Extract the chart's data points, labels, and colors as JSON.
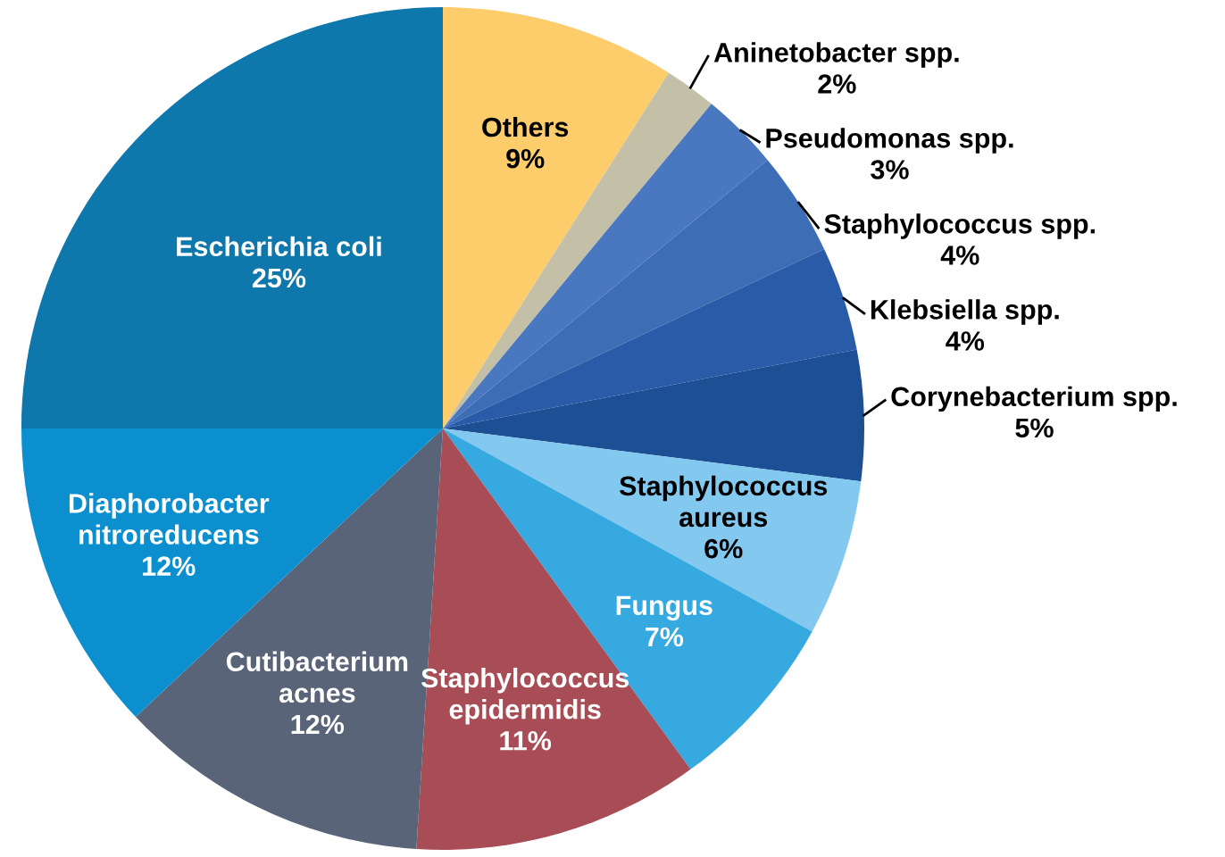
{
  "chart_data": {
    "type": "pie",
    "categories": [
      "Others",
      "Aninetobacter spp.",
      "Pseudomonas spp.",
      "Staphylococcus spp.",
      "Klebsiella spp.",
      "Corynebacterium spp.",
      "Staphylococcus\naureus",
      "Fungus",
      "Staphylococcus\nepidermidis",
      "Cutibacterium\nacnes",
      "Diaphorobacter\nnitroreducens",
      "Escherichia coli"
    ],
    "values": [
      9,
      2,
      3,
      4,
      4,
      5,
      6,
      7,
      11,
      12,
      12,
      25
    ],
    "colors": [
      "#fccd6a",
      "#c4c0a8",
      "#4a78c0",
      "#3c6db5",
      "#2a5ba8",
      "#1c4f94",
      "#82c8ef",
      "#35a9e0",
      "#a84d55",
      "#5a6478",
      "#0b8fcf",
      "#0e77ac"
    ],
    "value_labels": [
      "9%",
      "2%",
      "3%",
      "4%",
      "4%",
      "5%",
      "6%",
      "7%",
      "11%",
      "12%",
      "12%",
      "25%"
    ]
  }
}
